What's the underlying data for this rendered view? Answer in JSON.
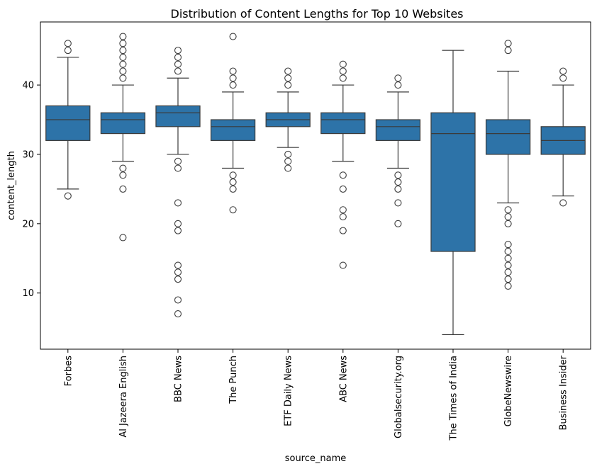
{
  "chart_data": {
    "type": "boxplot",
    "title": "Distribution of Content Lengths for Top 10 Websites",
    "xlabel": "source_name",
    "ylabel": "content_length",
    "ylim": [
      1.9,
      49.1
    ],
    "yticks": [
      10,
      20,
      30,
      40
    ],
    "grid": false,
    "legend": "none",
    "colors": {
      "box": "#2d73a8",
      "line": "#3b3b3b",
      "outlier_stroke": "#3b3b3b"
    },
    "categories": [
      "Forbes",
      "Al Jazeera English",
      "BBC News",
      "The Punch",
      "ETF Daily News",
      "ABC News",
      "Globalsecurity.org",
      "The Times of India",
      "GlobeNewswire",
      "Business Insider"
    ],
    "boxes": [
      {
        "whisker_low": 25,
        "q1": 32,
        "median": 35,
        "q3": 37,
        "whisker_high": 44,
        "outliers": [
          24,
          45,
          46
        ]
      },
      {
        "whisker_low": 29,
        "q1": 33,
        "median": 35,
        "q3": 36,
        "whisker_high": 40,
        "outliers": [
          18,
          25,
          27,
          28,
          41,
          42,
          43,
          44,
          45,
          46,
          47
        ]
      },
      {
        "whisker_low": 30,
        "q1": 34,
        "median": 36,
        "q3": 37,
        "whisker_high": 41,
        "outliers": [
          7,
          9,
          12,
          13,
          14,
          19,
          20,
          23,
          28,
          29,
          42,
          43,
          44,
          45
        ]
      },
      {
        "whisker_low": 28,
        "q1": 32,
        "median": 34,
        "q3": 35,
        "whisker_high": 39,
        "outliers": [
          22,
          25,
          26,
          27,
          40,
          41,
          42,
          47
        ]
      },
      {
        "whisker_low": 31,
        "q1": 34,
        "median": 35,
        "q3": 36,
        "whisker_high": 39,
        "outliers": [
          28,
          29,
          30,
          40,
          41,
          42
        ]
      },
      {
        "whisker_low": 29,
        "q1": 33,
        "median": 35,
        "q3": 36,
        "whisker_high": 40,
        "outliers": [
          14,
          19,
          21,
          22,
          25,
          27,
          41,
          42,
          43
        ]
      },
      {
        "whisker_low": 28,
        "q1": 32,
        "median": 34,
        "q3": 35,
        "whisker_high": 39,
        "outliers": [
          20,
          23,
          25,
          26,
          27,
          40,
          41
        ]
      },
      {
        "whisker_low": 4,
        "q1": 16,
        "median": 33,
        "q3": 36,
        "whisker_high": 45,
        "outliers": []
      },
      {
        "whisker_low": 23,
        "q1": 30,
        "median": 33,
        "q3": 35,
        "whisker_high": 42,
        "outliers": [
          11,
          12,
          13,
          14,
          15,
          16,
          17,
          20,
          21,
          22,
          45,
          46
        ]
      },
      {
        "whisker_low": 24,
        "q1": 30,
        "median": 32,
        "q3": 34,
        "whisker_high": 40,
        "outliers": [
          23,
          41,
          42
        ]
      }
    ]
  }
}
